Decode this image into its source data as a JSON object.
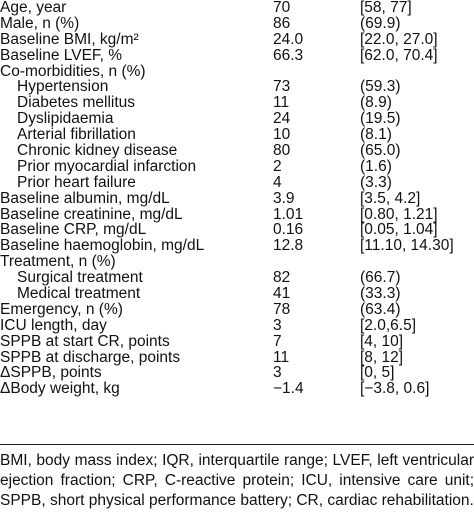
{
  "table": {
    "rows": [
      [
        "Age, year",
        "70",
        "[58, 77]"
      ],
      [
        "Male, n (%)",
        "86",
        "(69.9)"
      ],
      [
        "Baseline BMI, kg/m²",
        "24.0",
        "[22.0, 27.0]"
      ],
      [
        "Baseline LVEF, %",
        "66.3",
        "[62.0, 70.4]"
      ],
      {
        "label": "Co-morbidities, n (%)",
        "items": [
          [
            "Hypertension",
            "73",
            "(59.3)"
          ],
          [
            "Diabetes mellitus",
            "11",
            "(8.9)"
          ],
          [
            "Dyslipidaemia",
            "24",
            "(19.5)"
          ],
          [
            "Arterial fibrillation",
            "10",
            "(8.1)"
          ],
          [
            "Chronic kidney disease",
            "80",
            "(65.0)"
          ],
          [
            "Prior myocardial infarction",
            "2",
            "(1.6)"
          ],
          [
            "Prior heart failure",
            "4",
            "(3.3)"
          ]
        ]
      },
      [
        "Baseline albumin, mg/dL",
        "3.9",
        "[3.5, 4.2]"
      ],
      [
        "Baseline creatinine, mg/dL",
        "1.01",
        "[0.80, 1.21]"
      ],
      [
        "Baseline CRP, mg/dL",
        "0.16",
        "[0.05, 1.04]"
      ],
      [
        "Baseline haemoglobin, mg/dL",
        "12.8",
        "[11.10, 14.30]"
      ],
      {
        "label": "Treatment, n (%)",
        "items": [
          [
            "Surgical treatment",
            "82",
            "(66.7)"
          ],
          [
            "Medical treatment",
            "41",
            "(33.3)"
          ]
        ]
      },
      [
        "Emergency, n (%)",
        "78",
        "(63.4)"
      ],
      [
        "ICU length, day",
        "3",
        "[2.0,6.5]"
      ],
      [
        "SPPB at start CR, points",
        "7",
        "[4, 10]"
      ],
      [
        "SPPB at discharge, points",
        "11",
        "[8, 12]"
      ],
      [
        "ΔSPPB, points",
        "3",
        "[0, 5]"
      ],
      [
        "ΔBody weight, kg",
        "−1.4",
        "[−3.8, 0.6]"
      ]
    ],
    "footnote": "BMI, body mass index; IQR, interquartile range; LVEF, left ventricular ejection fraction; CRP, C-reactive protein; ICU, intensive care unit; SPPB, short physical performance battery; CR, cardiac rehabilitation."
  }
}
